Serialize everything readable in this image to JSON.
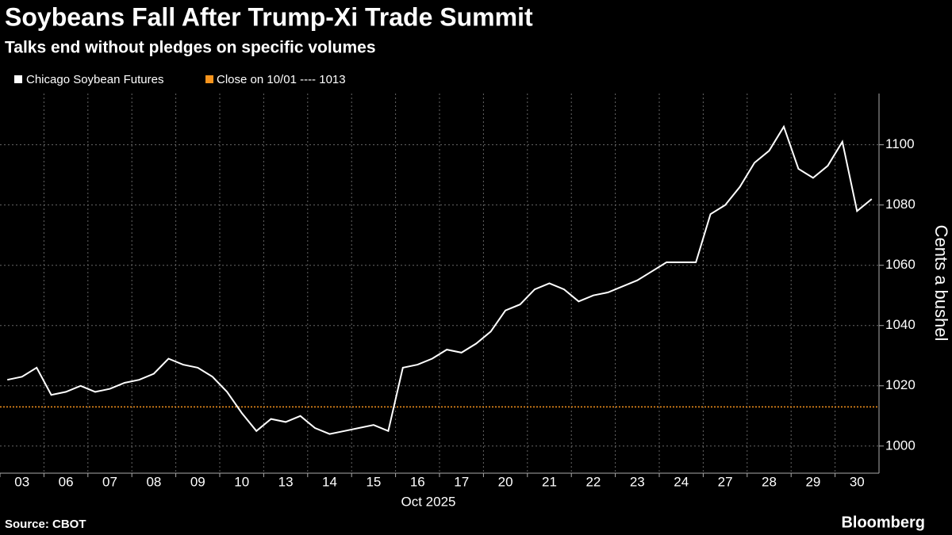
{
  "chart_data": {
    "type": "line",
    "title": "Soybeans Fall After Trump-Xi Trade Summit",
    "subtitle": "Talks end without pledges on specific volumes",
    "x_label": "Oct 2025",
    "y_label": "Cents a bushel",
    "source": "Source: CBOT",
    "brand": "Bloomberg",
    "categories": [
      null,
      "03",
      null,
      null,
      "06",
      null,
      null,
      "07",
      null,
      null,
      "08",
      null,
      null,
      "09",
      null,
      null,
      "10",
      null,
      null,
      "13",
      null,
      null,
      "14",
      null,
      null,
      "15",
      null,
      null,
      "16",
      null,
      null,
      "17",
      null,
      null,
      "20",
      null,
      null,
      "21",
      null,
      null,
      "22",
      null,
      null,
      "23",
      null,
      null,
      "24",
      null,
      null,
      "27",
      null,
      null,
      "28",
      null,
      null,
      "29",
      null,
      null,
      "30",
      null
    ],
    "series": [
      {
        "name": "Chicago Soybean Futures",
        "color": "#ffffff",
        "values": [
          1022,
          1023,
          1026,
          1017,
          1018,
          1020,
          1018,
          1019,
          1021,
          1022,
          1024,
          1029,
          1027,
          1026,
          1023,
          1018,
          1011,
          1005,
          1009,
          1008,
          1010,
          1006,
          1004,
          1005,
          1006,
          1007,
          1005,
          1026,
          1027,
          1029,
          1032,
          1031,
          1034,
          1038,
          1045,
          1047,
          1052,
          1054,
          1052,
          1048,
          1050,
          1051,
          1053,
          1055,
          1058,
          1061,
          1061,
          1061,
          1077,
          1080,
          1086,
          1094,
          1098,
          1106,
          1092,
          1089,
          1093,
          1101,
          1078,
          1082
        ]
      }
    ],
    "reference_line": {
      "name": "Close on 10/01 ---- 1013",
      "value": 1013,
      "color": "#f7941d"
    },
    "ylim": [
      991,
      1117
    ],
    "yticks": [
      1000,
      1020,
      1040,
      1060,
      1080,
      1100
    ],
    "grid": true
  }
}
